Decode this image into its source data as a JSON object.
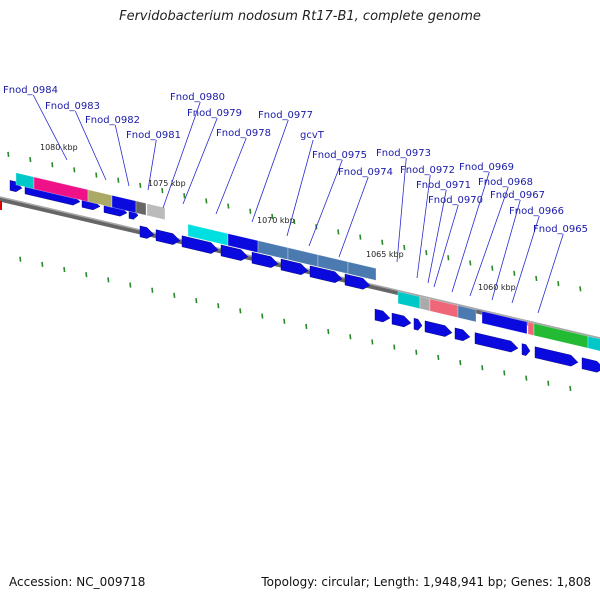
{
  "title": "Fervidobacterium nodosum Rt17-B1, complete genome",
  "footer": {
    "accession": "Accession: NC_009718",
    "summary": "Topology: circular; Length: 1,948,941 bp; Genes: 1,808"
  },
  "colors": {
    "cds": "#0a0adf",
    "backbone": "#888888",
    "label": "#1a1aa8",
    "tick": "#2a8a2a"
  },
  "position_labels": [
    "1080 kbp",
    "1075 kbp",
    "1070 kbp",
    "1065 kbp",
    "1060 kbp"
  ],
  "genes": [
    {
      "label": "Fnod_0984",
      "color": "#00c8c8"
    },
    {
      "label": "Fnod_0983",
      "color": "#ee1188"
    },
    {
      "label": "Fnod_0982",
      "color": "#aaaa66"
    },
    {
      "label": "Fnod_0981",
      "color": "#0a0adf"
    },
    {
      "label": "Fnod_0980",
      "color": "#666666"
    },
    {
      "label": "Fnod_0979",
      "color": "#bbbbbb"
    },
    {
      "label": "Fnod_0978",
      "color": "#00e0e0"
    },
    {
      "label": "Fnod_0977",
      "color": "#0a0adf"
    },
    {
      "label": "gcvT",
      "color": "#4a7ab0"
    },
    {
      "label": "Fnod_0975",
      "color": "#4a7ab0"
    },
    {
      "label": "Fnod_0974",
      "color": "#4a7ab0"
    },
    {
      "label": "Fnod_0973",
      "color": "#4a7ab0"
    },
    {
      "label": "Fnod_0972",
      "color": "#00c8c8"
    },
    {
      "label": "Fnod_0971",
      "color": "#aaaaaa"
    },
    {
      "label": "Fnod_0970",
      "color": "#ee6677"
    },
    {
      "label": "Fnod_0969",
      "color": "#4a7ab0"
    },
    {
      "label": "Fnod_0968",
      "color": "#0a0adf"
    },
    {
      "label": "Fnod_0967",
      "color": "#ee1188"
    },
    {
      "label": "Fnod_0966",
      "color": "#ee6677"
    },
    {
      "label": "Fnod_0965",
      "color": "#22bb33"
    }
  ]
}
